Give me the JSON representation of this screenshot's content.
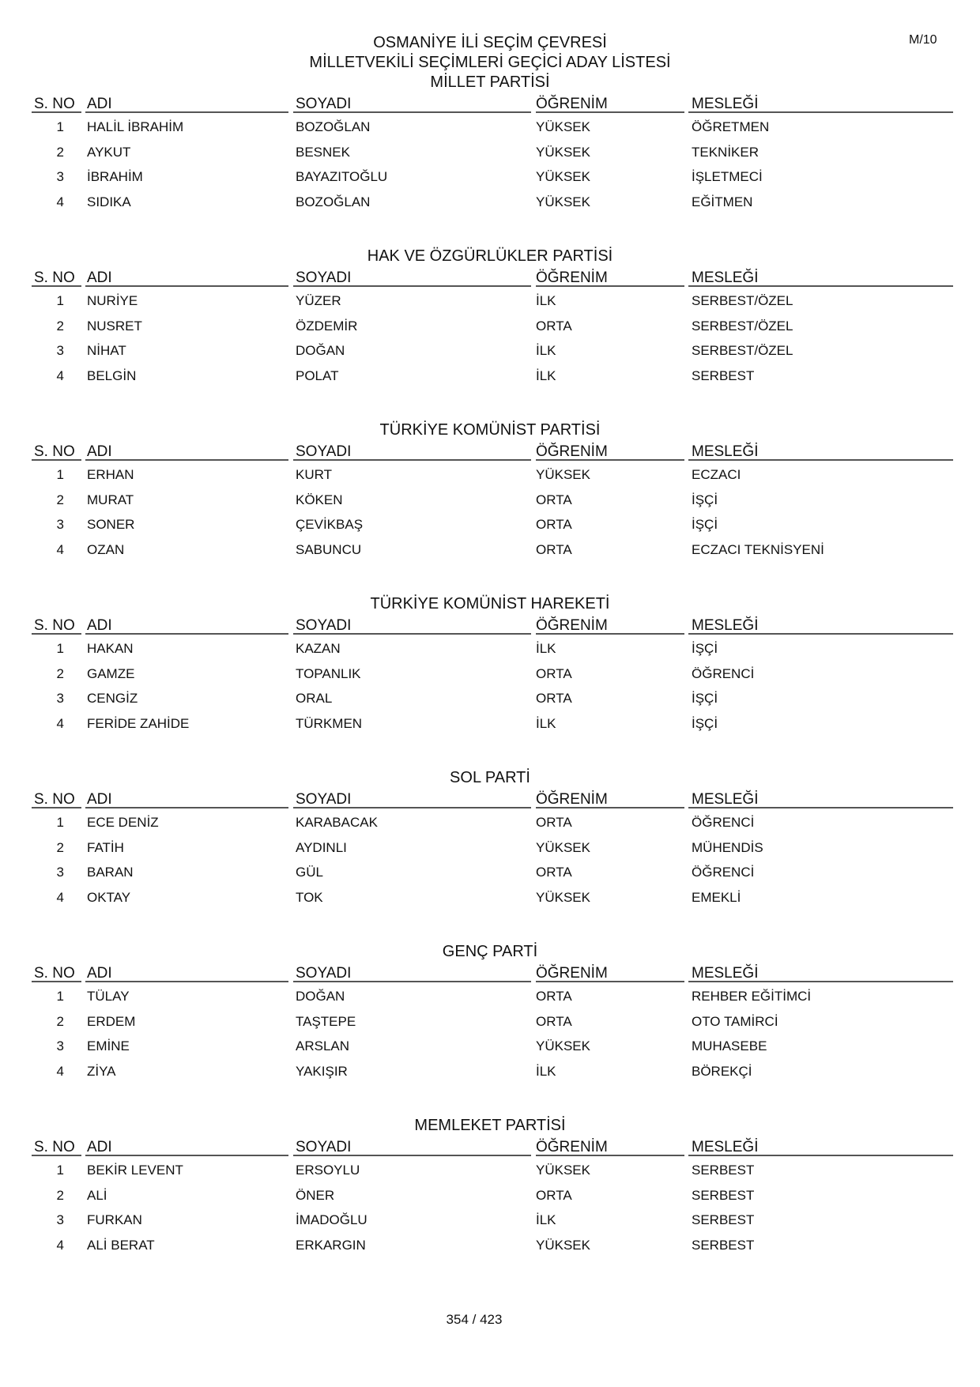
{
  "header": {
    "line1": "OSMANİYE İLİ SEÇİM ÇEVRESİ",
    "line2": "MİLLETVEKİLİ SEÇİMLERİ GEÇİCİ ADAY LİSTESİ",
    "code": "M/10"
  },
  "columns": {
    "no": "S. NO",
    "first": "ADI",
    "last": "SOYADI",
    "edu": "ÖĞRENİM",
    "job": "MESLEĞİ"
  },
  "sections": [
    {
      "party": "MİLLET PARTİSİ",
      "rows": [
        {
          "no": "1",
          "first": "HALİL İBRAHİM",
          "last": "BOZOĞLAN",
          "edu": "YÜKSEK",
          "job": "ÖĞRETMEN"
        },
        {
          "no": "2",
          "first": "AYKUT",
          "last": "BESNEK",
          "edu": "YÜKSEK",
          "job": "TEKNİKER"
        },
        {
          "no": "3",
          "first": "İBRAHİM",
          "last": "BAYAZITOĞLU",
          "edu": "YÜKSEK",
          "job": "İŞLETMECİ"
        },
        {
          "no": "4",
          "first": "SIDIKA",
          "last": "BOZOĞLAN",
          "edu": "YÜKSEK",
          "job": "EĞİTMEN"
        }
      ]
    },
    {
      "party": "HAK VE ÖZGÜRLÜKLER PARTİSİ",
      "rows": [
        {
          "no": "1",
          "first": "NURİYE",
          "last": "YÜZER",
          "edu": "İLK",
          "job": "SERBEST/ÖZEL"
        },
        {
          "no": "2",
          "first": "NUSRET",
          "last": "ÖZDEMİR",
          "edu": "ORTA",
          "job": "SERBEST/ÖZEL"
        },
        {
          "no": "3",
          "first": "NİHAT",
          "last": "DOĞAN",
          "edu": "İLK",
          "job": "SERBEST/ÖZEL"
        },
        {
          "no": "4",
          "first": "BELGİN",
          "last": "POLAT",
          "edu": "İLK",
          "job": "SERBEST"
        }
      ]
    },
    {
      "party": "TÜRKİYE KOMÜNİST PARTİSİ",
      "rows": [
        {
          "no": "1",
          "first": "ERHAN",
          "last": "KURT",
          "edu": "YÜKSEK",
          "job": "ECZACI"
        },
        {
          "no": "2",
          "first": "MURAT",
          "last": "KÖKEN",
          "edu": "ORTA",
          "job": "İŞÇİ"
        },
        {
          "no": "3",
          "first": "SONER",
          "last": "ÇEVİKBAŞ",
          "edu": "ORTA",
          "job": "İŞÇİ"
        },
        {
          "no": "4",
          "first": "OZAN",
          "last": "SABUNCU",
          "edu": "ORTA",
          "job": "ECZACI TEKNİSYENİ"
        }
      ]
    },
    {
      "party": "TÜRKİYE KOMÜNİST HAREKETİ",
      "rows": [
        {
          "no": "1",
          "first": "HAKAN",
          "last": "KAZAN",
          "edu": "İLK",
          "job": "İŞÇİ"
        },
        {
          "no": "2",
          "first": "GAMZE",
          "last": "TOPANLIK",
          "edu": "ORTA",
          "job": "ÖĞRENCİ"
        },
        {
          "no": "3",
          "first": "CENGİZ",
          "last": "ORAL",
          "edu": "ORTA",
          "job": "İŞÇİ"
        },
        {
          "no": "4",
          "first": "FERİDE ZAHİDE",
          "last": "TÜRKMEN",
          "edu": "İLK",
          "job": "İŞÇİ"
        }
      ]
    },
    {
      "party": "SOL PARTİ",
      "rows": [
        {
          "no": "1",
          "first": "ECE DENİZ",
          "last": "KARABACAK",
          "edu": "ORTA",
          "job": "ÖĞRENCİ"
        },
        {
          "no": "2",
          "first": "FATİH",
          "last": "AYDINLI",
          "edu": "YÜKSEK",
          "job": "MÜHENDİS"
        },
        {
          "no": "3",
          "first": "BARAN",
          "last": "GÜL",
          "edu": "ORTA",
          "job": "ÖĞRENCİ"
        },
        {
          "no": "4",
          "first": "OKTAY",
          "last": "TOK",
          "edu": "YÜKSEK",
          "job": "EMEKLİ"
        }
      ]
    },
    {
      "party": "GENÇ PARTİ",
      "rows": [
        {
          "no": "1",
          "first": "TÜLAY",
          "last": "DOĞAN",
          "edu": "ORTA",
          "job": "REHBER EĞİTİMCİ"
        },
        {
          "no": "2",
          "first": "ERDEM",
          "last": "TAŞTEPE",
          "edu": "ORTA",
          "job": "OTO TAMİRCİ"
        },
        {
          "no": "3",
          "first": "EMİNE",
          "last": "ARSLAN",
          "edu": "YÜKSEK",
          "job": "MUHASEBE"
        },
        {
          "no": "4",
          "first": "ZİYA",
          "last": "YAKIŞIR",
          "edu": "İLK",
          "job": "BÖREKÇİ"
        }
      ]
    },
    {
      "party": "MEMLEKET PARTİSİ",
      "rows": [
        {
          "no": "1",
          "first": "BEKİR LEVENT",
          "last": "ERSOYLU",
          "edu": "YÜKSEK",
          "job": "SERBEST"
        },
        {
          "no": "2",
          "first": "ALİ",
          "last": "ÖNER",
          "edu": "ORTA",
          "job": "SERBEST"
        },
        {
          "no": "3",
          "first": "FURKAN",
          "last": "İMADOĞLU",
          "edu": "İLK",
          "job": "SERBEST"
        },
        {
          "no": "4",
          "first": "ALİ BERAT",
          "last": "ERKARGIN",
          "edu": "YÜKSEK",
          "job": "SERBEST"
        }
      ]
    }
  ],
  "footer": {
    "page": "354 / 423"
  }
}
